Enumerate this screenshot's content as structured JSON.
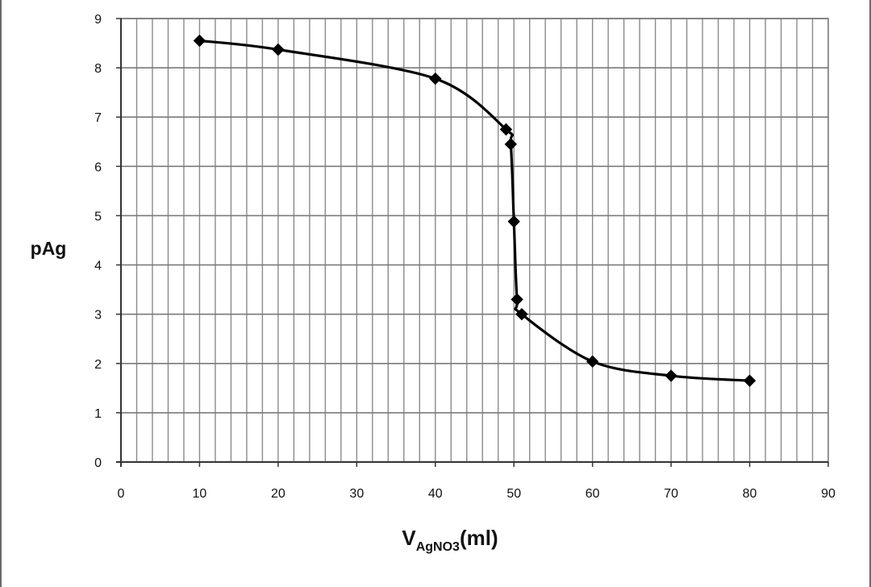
{
  "chart_data": {
    "type": "line",
    "title": "",
    "xlabel": {
      "main": "V",
      "subscript": "AgNO3",
      "suffix": "(ml)"
    },
    "ylabel": "pAg",
    "xlim": [
      0,
      90
    ],
    "ylim": [
      0,
      9
    ],
    "x_major_ticks": [
      0,
      10,
      20,
      30,
      40,
      50,
      60,
      70,
      80,
      90
    ],
    "y_major_ticks": [
      0,
      1,
      2,
      3,
      4,
      5,
      6,
      7,
      8,
      9
    ],
    "x_minor_step": 2,
    "grid": true,
    "series": [
      {
        "name": "pAg",
        "marker": "diamond",
        "color": "#000000",
        "x": [
          10,
          20,
          40,
          49,
          49.6,
          50,
          50.4,
          51,
          60,
          70,
          80
        ],
        "y": [
          8.55,
          8.37,
          7.78,
          6.75,
          6.45,
          4.88,
          3.3,
          3.0,
          2.04,
          1.75,
          1.65
        ]
      }
    ]
  }
}
